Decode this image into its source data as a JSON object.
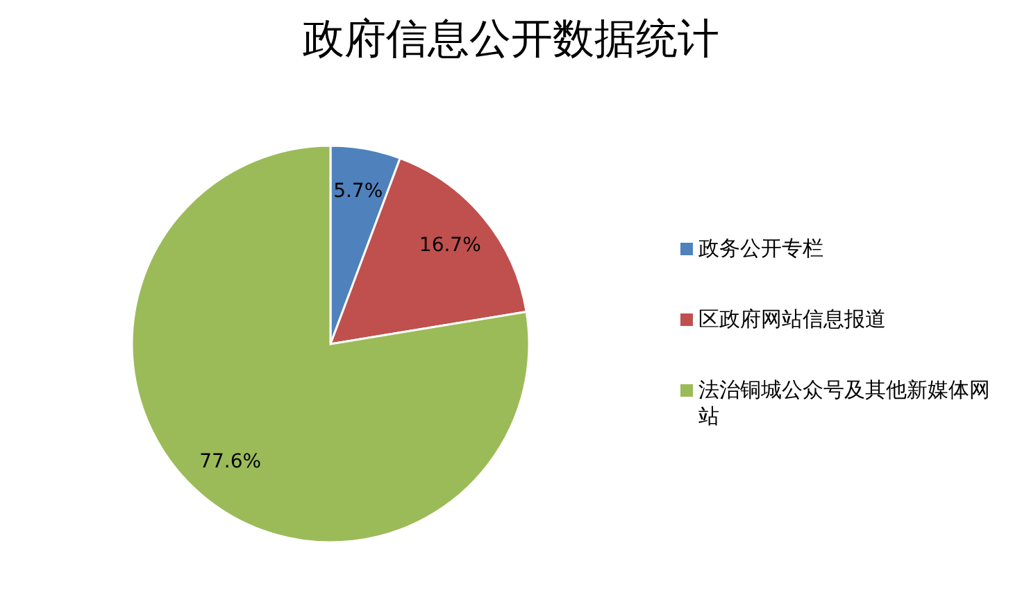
{
  "chart_data": {
    "type": "pie",
    "title": "政府信息公开数据统计",
    "categories": [
      "政务公开专栏",
      "区政府网站信息报道",
      "法治铜城公众号及其他新媒体网站"
    ],
    "values": [
      5.7,
      16.7,
      77.6
    ],
    "colors": [
      "#4f81bd",
      "#c0504d",
      "#9bbb59"
    ],
    "value_labels": [
      "5.7%",
      "16.7%",
      "77.6%"
    ],
    "legend": "right"
  }
}
